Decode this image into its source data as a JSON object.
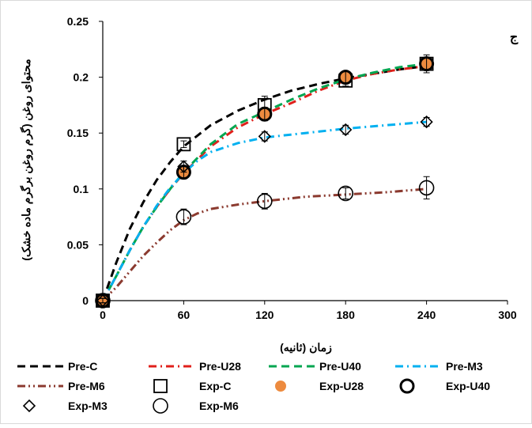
{
  "chart_data": {
    "type": "line",
    "panel_label": "ج",
    "xlabel": "زمان (ثانیه)",
    "ylabel": "محتوای روغن (گرم روغن برگرم ماده خشک)",
    "xlim": [
      0,
      300
    ],
    "ylim": [
      0,
      0.25
    ],
    "x_ticks": [
      0,
      60,
      120,
      180,
      240,
      300
    ],
    "y_ticks": [
      0,
      0.05,
      0.1,
      0.15,
      0.2,
      0.25
    ],
    "x_tick_labels": [
      "0",
      "60",
      "120",
      "180",
      "240",
      "300"
    ],
    "y_tick_labels": [
      "0",
      "0.05",
      "0.1",
      "0.15",
      "0.2",
      "0.25"
    ],
    "grid": false,
    "legend_position": "bottom",
    "series": [
      {
        "name": "Pre-C",
        "kind": "model",
        "color": "#000000",
        "dash": "dash",
        "x": [
          0,
          10,
          20,
          30,
          40,
          50,
          60,
          80,
          100,
          120,
          140,
          160,
          180,
          200,
          220,
          240
        ],
        "y": [
          0,
          0.034,
          0.064,
          0.088,
          0.108,
          0.124,
          0.138,
          0.157,
          0.17,
          0.18,
          0.188,
          0.194,
          0.199,
          0.203,
          0.207,
          0.21
        ]
      },
      {
        "name": "Pre-U28",
        "kind": "model",
        "color": "#e0201b",
        "dash": "dashdot",
        "x": [
          0,
          10,
          20,
          30,
          40,
          50,
          60,
          80,
          100,
          120,
          140,
          160,
          180,
          200,
          220,
          240
        ],
        "y": [
          0,
          0.022,
          0.045,
          0.066,
          0.084,
          0.1,
          0.114,
          0.138,
          0.155,
          0.167,
          0.177,
          0.188,
          0.197,
          0.203,
          0.207,
          0.21
        ]
      },
      {
        "name": "Pre-U40",
        "kind": "model",
        "color": "#00a650",
        "dash": "dash",
        "x": [
          0,
          10,
          20,
          30,
          40,
          50,
          60,
          80,
          100,
          120,
          140,
          160,
          180,
          200,
          220,
          240
        ],
        "y": [
          0,
          0.022,
          0.045,
          0.066,
          0.084,
          0.1,
          0.115,
          0.14,
          0.158,
          0.169,
          0.18,
          0.19,
          0.198,
          0.204,
          0.209,
          0.212
        ]
      },
      {
        "name": "Pre-M3",
        "kind": "model",
        "color": "#00b0f0",
        "dash": "dashdot",
        "x": [
          0,
          10,
          20,
          30,
          40,
          50,
          60,
          70,
          80,
          100,
          120,
          150,
          180,
          210,
          240
        ],
        "y": [
          0,
          0.022,
          0.045,
          0.066,
          0.085,
          0.101,
          0.114,
          0.125,
          0.133,
          0.141,
          0.146,
          0.15,
          0.154,
          0.157,
          0.16
        ]
      },
      {
        "name": "Pre-M6",
        "kind": "model",
        "color": "#8b3a2f",
        "dash": "dashdotdot",
        "x": [
          0,
          10,
          20,
          30,
          40,
          50,
          60,
          70,
          80,
          100,
          120,
          150,
          180,
          210,
          240
        ],
        "y": [
          0,
          0.012,
          0.026,
          0.04,
          0.052,
          0.063,
          0.072,
          0.078,
          0.082,
          0.086,
          0.089,
          0.093,
          0.095,
          0.097,
          0.1
        ]
      },
      {
        "name": "Exp-C",
        "kind": "marker",
        "marker": "square",
        "color": "#000000",
        "x": [
          0,
          60,
          120,
          180,
          240
        ],
        "y": [
          0,
          0.14,
          0.175,
          0.197,
          0.212
        ],
        "err": [
          0.002,
          0.003,
          0.008,
          0.005,
          0.008
        ]
      },
      {
        "name": "Exp-U28",
        "kind": "marker",
        "marker": "filled-circle",
        "color": "#ed8b3f",
        "x": [
          0,
          60,
          120,
          180,
          240
        ],
        "y": [
          0,
          0.115,
          0.167,
          0.2,
          0.212
        ],
        "err": [
          0.002,
          0.004,
          0.004,
          0.004,
          0.004
        ]
      },
      {
        "name": "Exp-U40",
        "kind": "marker",
        "marker": "thick-circle",
        "color": "#000000",
        "x": [
          0,
          60,
          120,
          180,
          240
        ],
        "y": [
          0,
          0.115,
          0.167,
          0.2,
          0.212
        ],
        "err": [
          0.002,
          0.006,
          0.006,
          0.005,
          0.006
        ]
      },
      {
        "name": "Exp-M3",
        "kind": "marker",
        "marker": "diamond",
        "color": "#000000",
        "x": [
          0,
          60,
          120,
          180,
          240
        ],
        "y": [
          0,
          0.12,
          0.147,
          0.153,
          0.16
        ],
        "err": [
          0.002,
          0.005,
          0.004,
          0.004,
          0.004
        ]
      },
      {
        "name": "Exp-M6",
        "kind": "marker",
        "marker": "open-circle",
        "color": "#000000",
        "x": [
          0,
          60,
          120,
          180,
          240
        ],
        "y": [
          0,
          0.075,
          0.089,
          0.096,
          0.101
        ],
        "err": [
          0.002,
          0.007,
          0.007,
          0.005,
          0.01
        ]
      }
    ]
  }
}
